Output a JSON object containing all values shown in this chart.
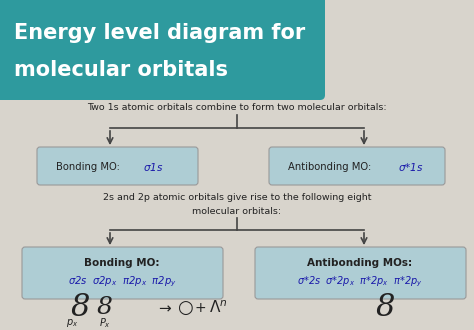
{
  "title_line1": "Energy level diagram for",
  "title_line2": "molecular orbitals",
  "title_bg_color": "#2e9a9e",
  "title_text_color": "#ffffff",
  "bg_color": "#d8d4cc",
  "box_bg_color": "#aecdd4",
  "box_border_color": "#999999",
  "text1": "Two 1s atomic orbitals combine to form two molecular orbitals:",
  "text2_line1": "2s and 2p atomic orbitals give rise to the following eight",
  "text2_line2": "molecular orbitals:",
  "arrow_color": "#444444",
  "font_color": "#222222",
  "mo_color": "#1a1aaa",
  "figw": 4.74,
  "figh": 3.3,
  "dpi": 100
}
